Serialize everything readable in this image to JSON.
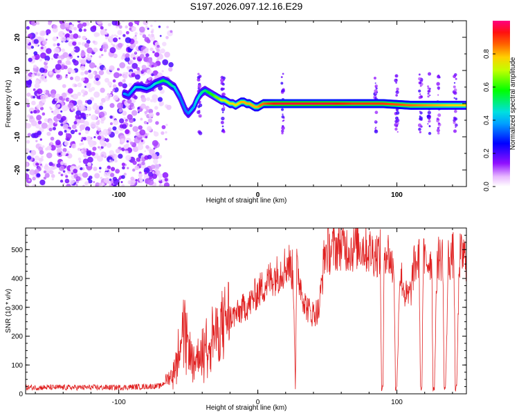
{
  "title": "S197.2026.097.12.16.E29",
  "chart_data": [
    {
      "type": "heatmap",
      "xlabel": "Height of straight line (km)",
      "ylabel": "Frequency (Hz)",
      "xlim": [
        -167,
        150
      ],
      "ylim": [
        -25,
        25
      ],
      "xticks": [
        -100,
        0,
        100
      ],
      "xtick_labels": [
        "-100",
        "0",
        "100"
      ],
      "yticks": [
        -20,
        -10,
        0,
        10,
        20
      ],
      "ytick_labels": [
        "-20",
        "-10",
        "0",
        "10",
        "20"
      ],
      "colorbar": {
        "label": "Normalized spectral amplitude",
        "range": [
          0.0,
          1.0
        ],
        "ticks": [
          0.0,
          0.2,
          0.4,
          0.6,
          0.8
        ],
        "tick_labels": [
          "0.0",
          "0.2",
          "0.4",
          "0.6",
          "0.8"
        ]
      },
      "noise_region_x": [
        -167,
        -70
      ],
      "track": {
        "x": [
          -96,
          -93,
          -88,
          -84,
          -80,
          -77,
          -74,
          -71,
          -68,
          -65,
          -62,
          -60,
          -58,
          -56,
          -54,
          -52,
          -50,
          -48,
          -46,
          -44,
          -42,
          -40,
          -38,
          -36,
          -34,
          -32,
          -30,
          -28,
          -26,
          -24,
          -22,
          -20,
          -18,
          -16,
          -14,
          -12,
          -10,
          -8,
          -6,
          -4,
          -2,
          0,
          2,
          4,
          8,
          15,
          30,
          50,
          70,
          90,
          110,
          130,
          150
        ],
        "y": [
          3,
          2.5,
          5,
          5,
          4.5,
          5,
          6,
          6.5,
          7,
          6.5,
          5.5,
          5,
          3.5,
          2,
          0,
          -2,
          -3,
          -2,
          -1,
          1,
          2.5,
          3.5,
          4,
          3.5,
          3,
          2.5,
          2,
          1.5,
          1,
          1,
          0.5,
          0,
          0,
          -0.5,
          0,
          0.5,
          0.5,
          0,
          0,
          -0.5,
          -1,
          -1,
          -0.5,
          0,
          0,
          0,
          0,
          0,
          0,
          0,
          -0.5,
          -0.5,
          -0.5
        ],
        "amplitude": [
          0.4,
          0.35,
          0.45,
          0.45,
          0.4,
          0.4,
          0.45,
          0.5,
          0.55,
          0.5,
          0.5,
          0.45,
          0.4,
          0.35,
          0.35,
          0.35,
          0.35,
          0.4,
          0.4,
          0.45,
          0.45,
          0.5,
          0.5,
          0.55,
          0.6,
          0.6,
          0.65,
          0.65,
          0.7,
          0.7,
          0.7,
          0.75,
          0.75,
          0.75,
          0.75,
          0.8,
          0.8,
          0.8,
          0.8,
          0.8,
          0.8,
          0.8,
          0.85,
          0.85,
          0.9,
          0.95,
          0.95,
          0.95,
          0.9,
          0.9,
          0.85,
          0.8,
          0.75
        ]
      },
      "spikes_x": [
        -42,
        -25,
        18,
        85,
        100,
        117,
        123,
        130,
        142
      ]
    },
    {
      "type": "line",
      "xlabel": "Height of straight line (km)",
      "ylabel": "SNR (10 * v/v)",
      "xlim": [
        -167,
        150
      ],
      "ylim": [
        0,
        575
      ],
      "xticks": [
        -100,
        0,
        100
      ],
      "xtick_labels": [
        "-100",
        "0",
        "100"
      ],
      "yticks": [
        0,
        100,
        200,
        300,
        400,
        500
      ],
      "ytick_labels": [
        "0",
        "100",
        "200",
        "300",
        "400",
        "500"
      ],
      "color": "#e02020",
      "series": [
        {
          "name": "SNR",
          "x": [
            -167,
            -100,
            -70,
            -62,
            -58,
            -54,
            -50,
            -46,
            -42,
            -38,
            -34,
            -30,
            -26,
            -22,
            -18,
            -14,
            -10,
            -6,
            -2,
            2,
            6,
            10,
            14,
            18,
            22,
            25,
            26,
            27,
            28,
            30,
            34,
            38,
            40,
            44,
            48,
            50,
            52,
            56,
            60,
            64,
            68,
            72,
            76,
            80,
            84,
            88,
            89,
            90,
            91,
            94,
            97,
            98,
            99,
            100,
            102,
            104,
            106,
            108,
            110,
            112,
            114,
            116,
            117,
            118,
            119,
            121,
            124,
            125,
            126,
            127,
            129,
            132,
            133,
            134,
            135,
            137,
            140,
            141,
            142,
            143,
            145,
            148,
            150
          ],
          "y": [
            20,
            20,
            25,
            60,
            120,
            230,
            150,
            100,
            130,
            150,
            200,
            180,
            220,
            250,
            260,
            270,
            290,
            300,
            330,
            350,
            370,
            390,
            400,
            420,
            440,
            410,
            300,
            20,
            420,
            380,
            300,
            270,
            270,
            280,
            470,
            480,
            480,
            490,
            500,
            490,
            485,
            500,
            490,
            480,
            470,
            470,
            15,
            20,
            490,
            470,
            420,
            420,
            15,
            20,
            400,
            380,
            330,
            320,
            340,
            420,
            440,
            450,
            15,
            20,
            450,
            440,
            450,
            460,
            15,
            20,
            460,
            450,
            470,
            15,
            20,
            450,
            460,
            470,
            15,
            20,
            460,
            460,
            450
          ]
        }
      ]
    }
  ]
}
